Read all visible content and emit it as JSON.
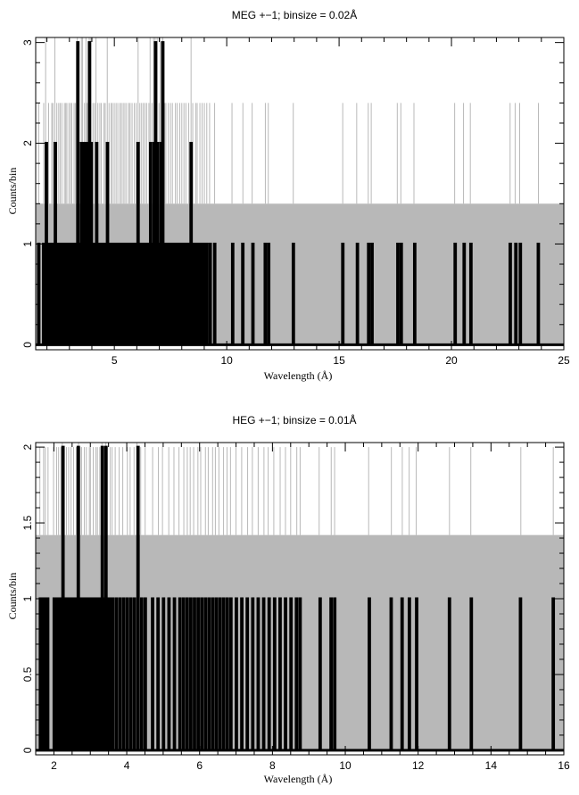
{
  "chart_data": [
    {
      "type": "histogram",
      "title": "MEG +−1; binsize = 0.02Å",
      "xlabel": "Wavelength (Å)",
      "ylabel": "Counts/bin",
      "xlim": [
        1.5,
        25
      ],
      "ylim": [
        -0.05,
        3.05
      ],
      "xticks": [
        5,
        10,
        15,
        20,
        25
      ],
      "yticks": [
        0,
        1,
        2,
        3
      ],
      "grid": false,
      "colors": {
        "data": "#000000",
        "error": "#b8b8b8"
      },
      "series": [
        {
          "style": "step",
          "binsize": 0.02,
          "nonzero_bins": [
            [
              1.62,
              1
            ],
            [
              1.84,
              1
            ],
            [
              1.96,
              2
            ],
            [
              2.08,
              1
            ],
            [
              2.2,
              1
            ],
            [
              2.28,
              1
            ],
            [
              2.36,
              2
            ],
            [
              2.44,
              1
            ],
            [
              2.52,
              1
            ],
            [
              2.6,
              1
            ],
            [
              2.68,
              1
            ],
            [
              2.76,
              1
            ],
            [
              2.84,
              1
            ],
            [
              2.9,
              1
            ],
            [
              2.98,
              1
            ],
            [
              3.06,
              1
            ],
            [
              3.12,
              1
            ],
            [
              3.2,
              1
            ],
            [
              3.28,
              1
            ],
            [
              3.36,
              3
            ],
            [
              3.44,
              1
            ],
            [
              3.52,
              2
            ],
            [
              3.6,
              2
            ],
            [
              3.66,
              1
            ],
            [
              3.74,
              2
            ],
            [
              3.8,
              1
            ],
            [
              3.88,
              3
            ],
            [
              3.96,
              2
            ],
            [
              4.04,
              1
            ],
            [
              4.12,
              1
            ],
            [
              4.2,
              2
            ],
            [
              4.28,
              1
            ],
            [
              4.36,
              1
            ],
            [
              4.44,
              1
            ],
            [
              4.52,
              1
            ],
            [
              4.6,
              1
            ],
            [
              4.68,
              2
            ],
            [
              4.76,
              1
            ],
            [
              4.84,
              1
            ],
            [
              4.92,
              1
            ],
            [
              5.0,
              1
            ],
            [
              5.08,
              1
            ],
            [
              5.16,
              1
            ],
            [
              5.24,
              1
            ],
            [
              5.32,
              1
            ],
            [
              5.4,
              1
            ],
            [
              5.48,
              1
            ],
            [
              5.56,
              1
            ],
            [
              5.64,
              1
            ],
            [
              5.72,
              1
            ],
            [
              5.8,
              1
            ],
            [
              5.88,
              1
            ],
            [
              5.96,
              1
            ],
            [
              6.04,
              2
            ],
            [
              6.12,
              1
            ],
            [
              6.2,
              1
            ],
            [
              6.28,
              1
            ],
            [
              6.36,
              1
            ],
            [
              6.44,
              1
            ],
            [
              6.52,
              1
            ],
            [
              6.6,
              2
            ],
            [
              6.68,
              1
            ],
            [
              6.76,
              2
            ],
            [
              6.82,
              3
            ],
            [
              6.9,
              2
            ],
            [
              6.98,
              1
            ],
            [
              7.06,
              2
            ],
            [
              7.14,
              3
            ],
            [
              7.22,
              1
            ],
            [
              7.3,
              1
            ],
            [
              7.4,
              1
            ],
            [
              7.5,
              1
            ],
            [
              7.6,
              1
            ],
            [
              7.7,
              1
            ],
            [
              7.8,
              1
            ],
            [
              7.9,
              1
            ],
            [
              8.0,
              1
            ],
            [
              8.1,
              1
            ],
            [
              8.2,
              1
            ],
            [
              8.3,
              1
            ],
            [
              8.4,
              2
            ],
            [
              8.5,
              1
            ],
            [
              8.6,
              1
            ],
            [
              8.7,
              1
            ],
            [
              8.8,
              1
            ],
            [
              8.9,
              1
            ],
            [
              9.0,
              1
            ],
            [
              9.1,
              1
            ],
            [
              9.25,
              1
            ],
            [
              9.45,
              1
            ],
            [
              10.25,
              1
            ],
            [
              10.7,
              1
            ],
            [
              11.15,
              1
            ],
            [
              11.7,
              1
            ],
            [
              11.85,
              1
            ],
            [
              12.95,
              1
            ],
            [
              15.15,
              1
            ],
            [
              15.8,
              1
            ],
            [
              16.3,
              1
            ],
            [
              16.45,
              1
            ],
            [
              17.6,
              1
            ],
            [
              17.75,
              1
            ],
            [
              18.35,
              1
            ],
            [
              20.15,
              1
            ],
            [
              20.55,
              1
            ],
            [
              20.85,
              1
            ],
            [
              22.6,
              1
            ],
            [
              22.85,
              1
            ],
            [
              23.05,
              1
            ],
            [
              23.85,
              1
            ]
          ]
        },
        {
          "name": "",
          "style": "error-band",
          "band_level": 1.4
        }
      ]
    },
    {
      "type": "histogram",
      "title": "HEG +−1; binsize = 0.01Å",
      "xlabel": "Wavelength (Å)",
      "ylabel": "Counts/bin",
      "xlim": [
        1.5,
        16
      ],
      "ylim": [
        -0.03,
        2.03
      ],
      "xticks": [
        2,
        4,
        6,
        8,
        10,
        12,
        14,
        16
      ],
      "yticks": [
        0,
        0.5,
        1,
        1.5,
        2
      ],
      "grid": false,
      "colors": {
        "data": "#000000",
        "error": "#b8b8b8"
      },
      "series": [
        {
          "style": "step",
          "binsize": 0.01,
          "nonzero_bins": [
            [
              1.62,
              1
            ],
            [
              1.7,
              1
            ],
            [
              1.76,
              1
            ],
            [
              1.82,
              1
            ],
            [
              2.0,
              1
            ],
            [
              2.06,
              1
            ],
            [
              2.12,
              1
            ],
            [
              2.18,
              1
            ],
            [
              2.24,
              2
            ],
            [
              2.3,
              1
            ],
            [
              2.36,
              1
            ],
            [
              2.42,
              1
            ],
            [
              2.48,
              1
            ],
            [
              2.54,
              1
            ],
            [
              2.6,
              1
            ],
            [
              2.66,
              2
            ],
            [
              2.72,
              1
            ],
            [
              2.78,
              1
            ],
            [
              2.84,
              1
            ],
            [
              2.9,
              1
            ],
            [
              2.96,
              1
            ],
            [
              3.02,
              1
            ],
            [
              3.08,
              1
            ],
            [
              3.14,
              1
            ],
            [
              3.2,
              1
            ],
            [
              3.26,
              1
            ],
            [
              3.32,
              2
            ],
            [
              3.38,
              1
            ],
            [
              3.42,
              2
            ],
            [
              3.48,
              1
            ],
            [
              3.54,
              1
            ],
            [
              3.6,
              1
            ],
            [
              3.7,
              1
            ],
            [
              3.8,
              1
            ],
            [
              3.9,
              1
            ],
            [
              4.0,
              1
            ],
            [
              4.1,
              1
            ],
            [
              4.2,
              1
            ],
            [
              4.3,
              2
            ],
            [
              4.4,
              1
            ],
            [
              4.5,
              1
            ],
            [
              4.7,
              1
            ],
            [
              4.85,
              1
            ],
            [
              5.0,
              1
            ],
            [
              5.15,
              1
            ],
            [
              5.3,
              1
            ],
            [
              5.45,
              1
            ],
            [
              5.55,
              1
            ],
            [
              5.65,
              1
            ],
            [
              5.75,
              1
            ],
            [
              5.85,
              1
            ],
            [
              5.95,
              1
            ],
            [
              6.05,
              1
            ],
            [
              6.15,
              1
            ],
            [
              6.25,
              1
            ],
            [
              6.35,
              1
            ],
            [
              6.45,
              1
            ],
            [
              6.55,
              1
            ],
            [
              6.65,
              1
            ],
            [
              6.75,
              1
            ],
            [
              6.85,
              1
            ],
            [
              7.0,
              1
            ],
            [
              7.15,
              1
            ],
            [
              7.3,
              1
            ],
            [
              7.45,
              1
            ],
            [
              7.6,
              1
            ],
            [
              7.75,
              1
            ],
            [
              7.9,
              1
            ],
            [
              8.05,
              1
            ],
            [
              8.2,
              1
            ],
            [
              8.35,
              1
            ],
            [
              8.5,
              1
            ],
            [
              8.65,
              1
            ],
            [
              8.75,
              1
            ],
            [
              9.3,
              1
            ],
            [
              9.6,
              1
            ],
            [
              9.7,
              1
            ],
            [
              10.65,
              1
            ],
            [
              11.25,
              1
            ],
            [
              11.55,
              1
            ],
            [
              11.75,
              1
            ],
            [
              11.95,
              1
            ],
            [
              12.85,
              1
            ],
            [
              13.45,
              1
            ],
            [
              14.8,
              1
            ],
            [
              15.7,
              1
            ]
          ]
        },
        {
          "name": "",
          "style": "error-band",
          "band_level": 1.42
        }
      ]
    }
  ]
}
